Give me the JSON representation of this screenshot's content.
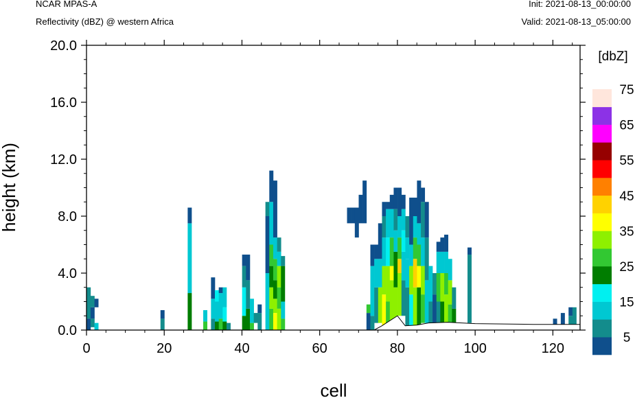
{
  "header": {
    "model": "NCAR MPAS-A",
    "subtitle": "Reflectivity (dBZ) @ western Africa",
    "init": "Init: 2021-08-13_00:00:00",
    "valid": "Valid: 2021-08-13_05:00:00"
  },
  "chart_data": {
    "type": "heatmap",
    "xlabel": "cell",
    "ylabel": "height (km)",
    "xlim": [
      0,
      127
    ],
    "ylim": [
      0,
      20
    ],
    "x_ticks": [
      "0",
      "20",
      "40",
      "60",
      "80",
      "100",
      "120"
    ],
    "y_ticks": [
      "0.0",
      "4.0",
      "8.0",
      "12.0",
      "16.0",
      "20.0"
    ],
    "grid": false,
    "colorbar": {
      "units": "[dbZ]",
      "labels": [
        "5",
        "15",
        "25",
        "35",
        "45",
        "55",
        "65",
        "75"
      ],
      "colors": [
        "#0f4f8c",
        "#138c8c",
        "#00c8d2",
        "#00f0f0",
        "#007d00",
        "#32c832",
        "#8ef000",
        "#ffff00",
        "#ffd200",
        "#ff8000",
        "#ff0000",
        "#960000",
        "#ff00ff",
        "#8c32e6",
        "#ffe6dc"
      ]
    },
    "terrain_km": [
      [
        0,
        0
      ],
      [
        74,
        0
      ],
      [
        76,
        0.3
      ],
      [
        80,
        1.0
      ],
      [
        82,
        0.3
      ],
      [
        85,
        0.35
      ],
      [
        88,
        0.5
      ],
      [
        93,
        0.55
      ],
      [
        100,
        0.45
      ],
      [
        115,
        0.4
      ],
      [
        127,
        0.4
      ]
    ],
    "columns": [
      {
        "x": 0,
        "segs": [
          [
            0.8,
            3.0,
            1
          ],
          [
            0,
            0.8,
            0
          ]
        ]
      },
      {
        "x": 1,
        "segs": [
          [
            0.8,
            1.6,
            0
          ],
          [
            0.2,
            0.8,
            1
          ],
          [
            1.6,
            2.4,
            1
          ]
        ]
      },
      {
        "x": 2,
        "segs": [
          [
            0,
            0.5,
            2
          ],
          [
            1.6,
            2.2,
            0
          ]
        ]
      },
      {
        "x": 19,
        "segs": [
          [
            0,
            0.8,
            1
          ],
          [
            0.8,
            1.4,
            0
          ]
        ]
      },
      {
        "x": 26,
        "segs": [
          [
            0,
            2.6,
            4
          ],
          [
            2.6,
            7.5,
            2
          ],
          [
            7.5,
            8.6,
            0
          ]
        ]
      },
      {
        "x": 30,
        "segs": [
          [
            0,
            0.6,
            5
          ],
          [
            0.6,
            1.4,
            2
          ]
        ]
      },
      {
        "x": 32,
        "segs": [
          [
            0,
            0.8,
            1
          ],
          [
            0.8,
            2.2,
            2
          ],
          [
            2.2,
            3.7,
            0
          ]
        ]
      },
      {
        "x": 33,
        "segs": [
          [
            0,
            0.6,
            4
          ],
          [
            0.6,
            2.0,
            2
          ],
          [
            2.0,
            2.8,
            3
          ]
        ]
      },
      {
        "x": 34,
        "segs": [
          [
            0,
            0.8,
            5
          ],
          [
            0.8,
            2.6,
            2
          ],
          [
            2.6,
            3.0,
            0
          ]
        ]
      },
      {
        "x": 35,
        "segs": [
          [
            0,
            0.6,
            4
          ],
          [
            0.6,
            1.6,
            3
          ],
          [
            1.6,
            3.0,
            2
          ]
        ]
      },
      {
        "x": 36,
        "segs": [
          [
            0,
            0.5,
            1
          ]
        ]
      },
      {
        "x": 40,
        "segs": [
          [
            0,
            1.0,
            4
          ],
          [
            1.0,
            3.0,
            3
          ],
          [
            3.0,
            4.5,
            1
          ],
          [
            4.5,
            5.3,
            0
          ]
        ]
      },
      {
        "x": 41,
        "segs": [
          [
            0,
            1.5,
            4
          ],
          [
            1.5,
            3.5,
            1
          ],
          [
            3.5,
            5.3,
            0
          ]
        ]
      },
      {
        "x": 42,
        "segs": [
          [
            0,
            0.5,
            5
          ],
          [
            0.5,
            2.2,
            2
          ]
        ]
      },
      {
        "x": 43,
        "segs": [
          [
            0.5,
            1.2,
            1
          ]
        ]
      },
      {
        "x": 44,
        "segs": [
          [
            0,
            1.2,
            1
          ],
          [
            1.2,
            1.8,
            0
          ]
        ]
      },
      {
        "x": 46,
        "segs": [
          [
            0,
            4.0,
            2
          ],
          [
            4.0,
            8.0,
            0
          ],
          [
            8.0,
            9.0,
            1
          ]
        ]
      },
      {
        "x": 47,
        "segs": [
          [
            0,
            1.5,
            5
          ],
          [
            1.5,
            3.0,
            6
          ],
          [
            3.0,
            4.5,
            4
          ],
          [
            4.5,
            6.0,
            5
          ],
          [
            6.0,
            9.0,
            2
          ],
          [
            9.0,
            11.2,
            0
          ]
        ]
      },
      {
        "x": 48,
        "segs": [
          [
            0,
            1.2,
            7
          ],
          [
            1.2,
            2.2,
            6
          ],
          [
            2.2,
            3.5,
            4
          ],
          [
            3.5,
            5.0,
            5
          ],
          [
            5.0,
            6.5,
            2
          ],
          [
            6.5,
            10.5,
            0
          ]
        ]
      },
      {
        "x": 49,
        "segs": [
          [
            0,
            1.5,
            6
          ],
          [
            1.5,
            3.0,
            5
          ],
          [
            3.0,
            4.5,
            6
          ],
          [
            4.5,
            5.5,
            2
          ],
          [
            5.5,
            6.5,
            1
          ]
        ]
      },
      {
        "x": 50,
        "segs": [
          [
            0,
            0.8,
            5
          ],
          [
            0.8,
            2.0,
            2
          ],
          [
            2.0,
            4.5,
            4
          ],
          [
            4.5,
            5.2,
            1
          ]
        ]
      },
      {
        "x": 67,
        "segs": [
          [
            7.5,
            8.6,
            0
          ]
        ]
      },
      {
        "x": 68,
        "segs": [
          [
            7.5,
            8.6,
            0
          ]
        ]
      },
      {
        "x": 69,
        "segs": [
          [
            6.5,
            8.6,
            0
          ]
        ]
      },
      {
        "x": 70,
        "segs": [
          [
            7.5,
            9.5,
            0
          ]
        ]
      },
      {
        "x": 71,
        "segs": [
          [
            7.5,
            10.5,
            0
          ]
        ]
      },
      {
        "x": 72,
        "segs": [
          [
            0,
            1.2,
            0
          ],
          [
            1.2,
            1.8,
            5
          ]
        ]
      },
      {
        "x": 73,
        "segs": [
          [
            0,
            1.0,
            1
          ],
          [
            1.0,
            4.5,
            2
          ],
          [
            4.5,
            6.0,
            0
          ]
        ]
      },
      {
        "x": 74,
        "segs": [
          [
            0.5,
            3.0,
            1
          ],
          [
            3.0,
            5.0,
            2
          ],
          [
            5.0,
            6.0,
            0
          ]
        ]
      },
      {
        "x": 75,
        "segs": [
          [
            0.5,
            3.0,
            6
          ],
          [
            3.0,
            5.0,
            2
          ],
          [
            5.0,
            7.5,
            0
          ]
        ]
      },
      {
        "x": 76,
        "segs": [
          [
            0.3,
            2.5,
            7
          ],
          [
            2.5,
            4.5,
            6
          ],
          [
            4.5,
            6.5,
            2
          ],
          [
            6.5,
            8.0,
            1
          ],
          [
            8.0,
            9.0,
            0
          ]
        ]
      },
      {
        "x": 77,
        "segs": [
          [
            0.3,
            2.0,
            5
          ],
          [
            2.0,
            4.5,
            6
          ],
          [
            4.5,
            6.5,
            3
          ],
          [
            6.5,
            8.5,
            2
          ],
          [
            8.5,
            9.0,
            0
          ]
        ]
      },
      {
        "x": 78,
        "segs": [
          [
            0.6,
            3.5,
            6
          ],
          [
            3.5,
            4.5,
            7
          ],
          [
            4.5,
            6.5,
            5
          ],
          [
            6.5,
            8.5,
            2
          ],
          [
            8.5,
            9.5,
            0
          ]
        ]
      },
      {
        "x": 79,
        "segs": [
          [
            0.8,
            3.0,
            6
          ],
          [
            3.0,
            5.5,
            4
          ],
          [
            5.5,
            7.0,
            2
          ],
          [
            7.0,
            8.5,
            1
          ],
          [
            8.5,
            10.0,
            0
          ]
        ]
      },
      {
        "x": 80,
        "segs": [
          [
            1.0,
            4.0,
            6
          ],
          [
            4.0,
            5.0,
            8
          ],
          [
            5.0,
            6.5,
            5
          ],
          [
            6.5,
            8.0,
            2
          ],
          [
            8.0,
            10.0,
            0
          ]
        ]
      },
      {
        "x": 81,
        "segs": [
          [
            1.0,
            3.5,
            1
          ],
          [
            3.5,
            5.5,
            2
          ],
          [
            5.5,
            7.0,
            3
          ],
          [
            7.0,
            8.5,
            2
          ],
          [
            8.5,
            9.5,
            0
          ]
        ]
      },
      {
        "x": 82,
        "segs": [
          [
            0.3,
            3.0,
            1
          ],
          [
            3.0,
            5.0,
            2
          ],
          [
            5.0,
            6.5,
            2
          ],
          [
            6.5,
            8.0,
            1
          ]
        ]
      },
      {
        "x": 83,
        "segs": [
          [
            0.3,
            2.5,
            3
          ],
          [
            2.5,
            4.5,
            6
          ],
          [
            4.5,
            6.0,
            2
          ],
          [
            6.0,
            9.3,
            0
          ]
        ]
      },
      {
        "x": 84,
        "segs": [
          [
            0.3,
            3.0,
            6
          ],
          [
            3.0,
            5.0,
            8
          ],
          [
            5.0,
            6.5,
            5
          ],
          [
            6.5,
            8.0,
            2
          ],
          [
            8.0,
            9.3,
            0
          ]
        ]
      },
      {
        "x": 85,
        "segs": [
          [
            0.3,
            3.0,
            4
          ],
          [
            3.0,
            4.5,
            7
          ],
          [
            4.5,
            6.0,
            5
          ],
          [
            6.0,
            7.5,
            2
          ],
          [
            7.5,
            10.5,
            0
          ]
        ]
      },
      {
        "x": 86,
        "segs": [
          [
            0.5,
            2.5,
            5
          ],
          [
            2.5,
            4.5,
            6
          ],
          [
            4.5,
            6.5,
            2
          ],
          [
            6.5,
            9.0,
            1
          ],
          [
            9.0,
            10.0,
            0
          ]
        ]
      },
      {
        "x": 87,
        "segs": [
          [
            0.5,
            3.5,
            2
          ],
          [
            3.5,
            6.5,
            1
          ],
          [
            6.5,
            9.0,
            0
          ]
        ]
      },
      {
        "x": 88,
        "segs": [
          [
            0.5,
            2.0,
            1
          ],
          [
            2.0,
            4.5,
            2
          ]
        ]
      },
      {
        "x": 89,
        "segs": [
          [
            0.5,
            2.5,
            0
          ],
          [
            2.5,
            4.0,
            1
          ]
        ]
      },
      {
        "x": 90,
        "segs": [
          [
            0.5,
            2.0,
            1
          ],
          [
            2.0,
            4.0,
            5
          ],
          [
            4.0,
            5.5,
            2
          ],
          [
            5.5,
            6.2,
            0
          ]
        ]
      },
      {
        "x": 91,
        "segs": [
          [
            0.5,
            2.0,
            4
          ],
          [
            2.0,
            4.0,
            6
          ],
          [
            4.0,
            5.5,
            2
          ],
          [
            5.5,
            6.5,
            0
          ]
        ]
      },
      {
        "x": 92,
        "segs": [
          [
            0.5,
            2.5,
            6
          ],
          [
            2.5,
            4.0,
            5
          ],
          [
            4.0,
            5.5,
            2
          ],
          [
            5.5,
            6.7,
            0
          ]
        ]
      },
      {
        "x": 93,
        "segs": [
          [
            0.5,
            1.8,
            5
          ],
          [
            1.8,
            3.5,
            6
          ],
          [
            3.5,
            5.0,
            2
          ]
        ]
      },
      {
        "x": 94,
        "segs": [
          [
            0.5,
            1.5,
            4
          ],
          [
            1.5,
            3.0,
            1
          ]
        ]
      },
      {
        "x": 98,
        "segs": [
          [
            0.5,
            5.3,
            1
          ],
          [
            5.3,
            5.8,
            0
          ]
        ]
      },
      {
        "x": 120,
        "segs": [
          [
            0.4,
            0.8,
            0
          ]
        ]
      },
      {
        "x": 122,
        "segs": [
          [
            0.4,
            1.2,
            0
          ]
        ]
      },
      {
        "x": 124,
        "segs": [
          [
            0.4,
            1.0,
            1
          ],
          [
            1.0,
            1.6,
            0
          ]
        ]
      },
      {
        "x": 125,
        "segs": [
          [
            0.4,
            1.6,
            1
          ]
        ]
      }
    ]
  }
}
